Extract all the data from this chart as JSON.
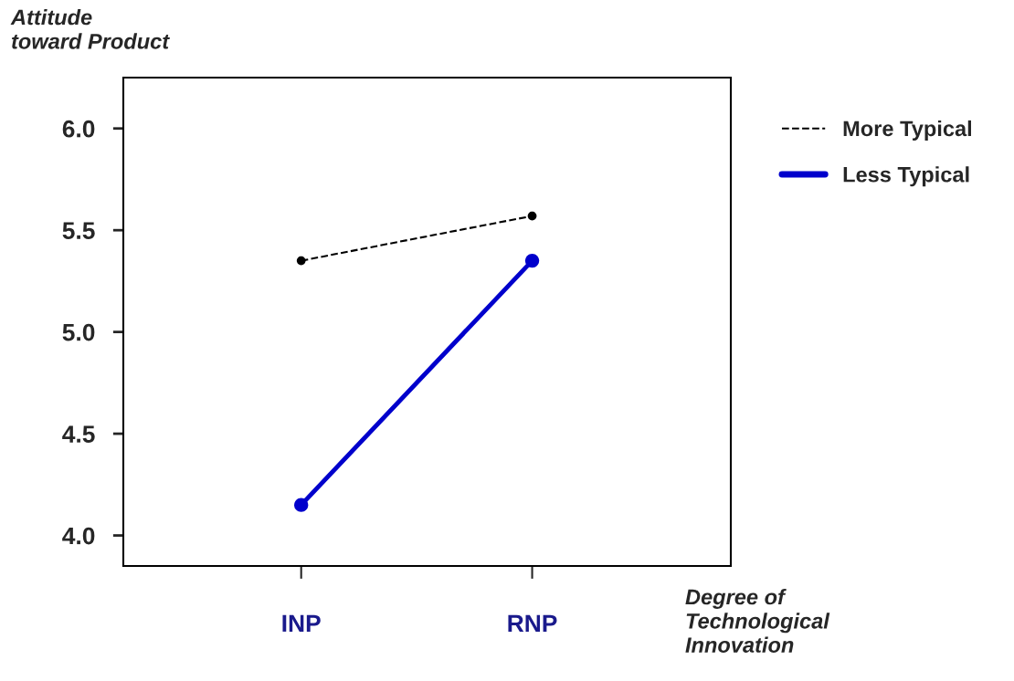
{
  "chart_data": {
    "type": "line",
    "xlabel": "Degree of\nTechnological\nInnovation",
    "ylabel": "Attitude\ntoward Product",
    "categories": [
      "INP",
      "RNP"
    ],
    "series": [
      {
        "name": "More Typical",
        "color": "#000000",
        "values": [
          5.35,
          5.57
        ],
        "line_style": "dashed",
        "marker": "circle"
      },
      {
        "name": "Less Typical",
        "color": "#0000cc",
        "values": [
          4.15,
          5.35
        ],
        "line_style": "solid",
        "marker": "circle"
      }
    ],
    "ylim": [
      3.85,
      6.25
    ],
    "yticks": [
      {
        "value": 4.0,
        "label": "4.0"
      },
      4.5,
      {
        "value": 5.0,
        "label": "5.0"
      },
      5.5,
      {
        "value": 6.0,
        "label": "6.0"
      }
    ],
    "grid": false,
    "legend": "right"
  }
}
